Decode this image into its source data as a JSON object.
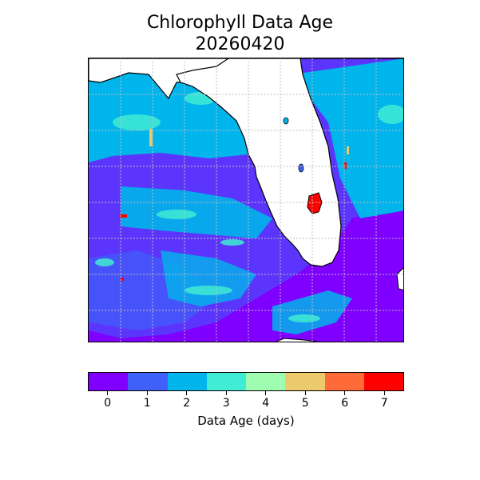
{
  "title": {
    "line1": "Chlorophyll Data Age",
    "line2": "20260420"
  },
  "colorbar": {
    "label": "Data Age (days)",
    "ticks": [
      "0",
      "1",
      "2",
      "3",
      "4",
      "5",
      "6",
      "7"
    ],
    "colors": [
      "#7f00ff",
      "#3f61fa",
      "#00b5eb",
      "#40ecd3",
      "#9ffdb1",
      "#ecc96b",
      "#ff6b38",
      "#ff0000"
    ]
  },
  "map": {
    "land_color": "#ffffff",
    "coastline_color": "#000000",
    "gridline_color": "#bfbfbf"
  }
}
